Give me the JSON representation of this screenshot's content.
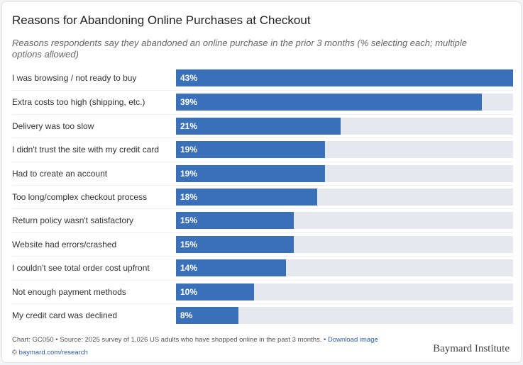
{
  "chart_data": {
    "type": "bar",
    "orientation": "horizontal",
    "title": "Reasons for Abandoning Online Purchases at Checkout",
    "subtitle": "Reasons respondents say they abandoned an online purchase in the prior 3 months (% selecting each; multiple options allowed)",
    "categories": [
      "I was browsing / not ready to buy",
      "Extra costs too high (shipping, etc.)",
      "Delivery was too slow",
      "I didn't trust the site with my credit card",
      "Had to create an account",
      "Too long/complex checkout process",
      "Return policy wasn't satisfactory",
      "Website had errors/crashed",
      "I couldn't see total order cost upfront",
      "Not enough payment methods",
      "My credit card was declined"
    ],
    "values": [
      43,
      39,
      21,
      19,
      19,
      18,
      15,
      15,
      14,
      10,
      8
    ],
    "value_labels": [
      "43%",
      "39%",
      "21%",
      "19%",
      "19%",
      "18%",
      "15%",
      "15%",
      "14%",
      "10%",
      "8%"
    ],
    "xlim": [
      0,
      43
    ],
    "grid": false,
    "colors": {
      "bar": "#3a70b8",
      "track": "#e5e8ed"
    }
  },
  "footer": {
    "source": "Chart: GC050 • Source: 2025 survey of 1,026 US adults who have shopped online in the past 3 months. •",
    "download": "Download image",
    "copyright": "©",
    "link": "baymard.com/research",
    "logo": "Baymard Institute"
  }
}
